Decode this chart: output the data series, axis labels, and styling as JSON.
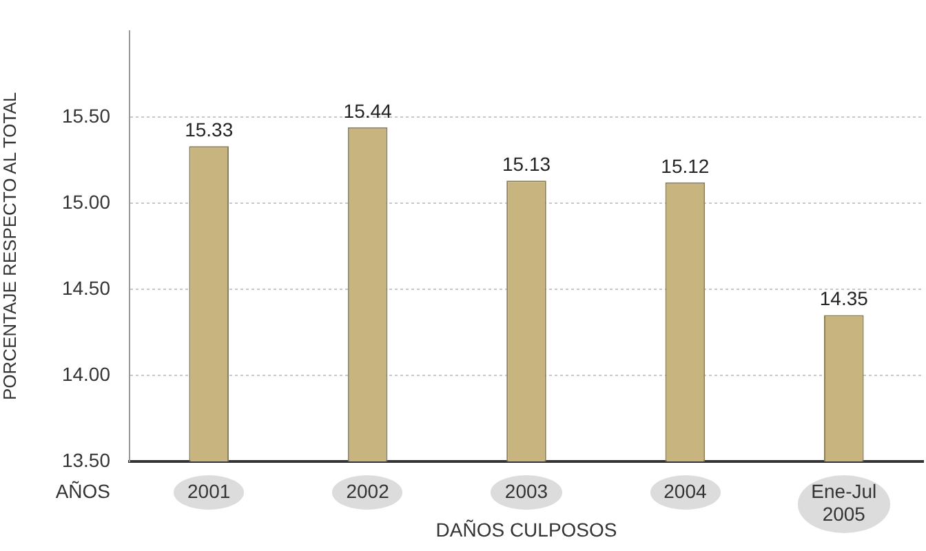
{
  "chart_data": {
    "type": "bar",
    "ylabel": "PORCENTAJE RESPECTO AL TOTAL",
    "xlabel": "DAÑOS CULPOSOS",
    "annotations": [
      "AÑOS"
    ],
    "categories": [
      "2001",
      "2002",
      "2003",
      "2004",
      "Ene-Jul 2005"
    ],
    "values": [
      15.33,
      15.44,
      15.13,
      15.12,
      14.35
    ],
    "color": "#c8b47e",
    "ylim": [
      13.5,
      16.0
    ],
    "yticks": [
      {
        "value": 13.5,
        "label": "13.50"
      },
      {
        "value": 14.0,
        "label": "14.00"
      },
      {
        "value": 14.5,
        "label": "14.50"
      },
      {
        "value": 15.0,
        "label": "15.00"
      },
      {
        "value": 15.5,
        "label": "15.50"
      }
    ],
    "grid": "y",
    "data_labels": true
  }
}
